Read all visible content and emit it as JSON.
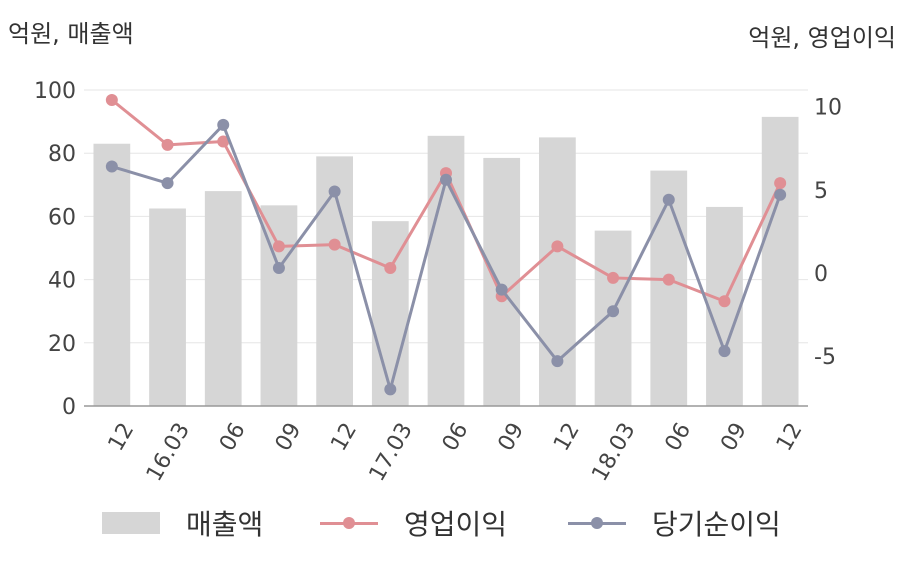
{
  "units": {
    "left": "억원, 매출액",
    "right": "억원, 영업이익"
  },
  "colors": {
    "bar": "#d6d6d6",
    "op_profit": "#e08f94",
    "net_profit": "#8b90a8",
    "grid": "#e6e6e6",
    "axis": "#999999"
  },
  "chart_data": {
    "type": "bar",
    "categories": [
      "12",
      "16.03",
      "06",
      "09",
      "12",
      "17.03",
      "06",
      "09",
      "12",
      "18.03",
      "06",
      "09",
      "12"
    ],
    "y_left": {
      "ylim": [
        0,
        100
      ],
      "ticks": [
        0,
        20,
        40,
        60,
        80,
        100
      ]
    },
    "y_right": {
      "ylim": [
        -8,
        11
      ],
      "ticks": [
        -5,
        0,
        5,
        10
      ],
      "tick_labels": [
        "-5",
        "0",
        "5",
        "10"
      ]
    },
    "grid": true,
    "legend_position": "bottom",
    "series": [
      {
        "name": "매출액",
        "type": "bar",
        "axis": "left",
        "values": [
          83,
          62.5,
          68,
          63.5,
          79,
          58.5,
          85.5,
          78.5,
          85,
          55.5,
          74.5,
          63,
          91.5
        ]
      },
      {
        "name": "영업이익",
        "type": "line",
        "axis": "right",
        "values": [
          10.4,
          7.7,
          7.9,
          1.6,
          1.7,
          0.3,
          6.0,
          -1.4,
          1.6,
          -0.3,
          -0.4,
          -1.7,
          5.4
        ]
      },
      {
        "name": "당기순이익",
        "type": "line",
        "axis": "right",
        "values": [
          6.4,
          5.4,
          8.9,
          0.3,
          4.9,
          -7.0,
          5.6,
          -1.0,
          -5.3,
          -2.3,
          4.4,
          -4.7,
          4.7
        ]
      }
    ]
  }
}
